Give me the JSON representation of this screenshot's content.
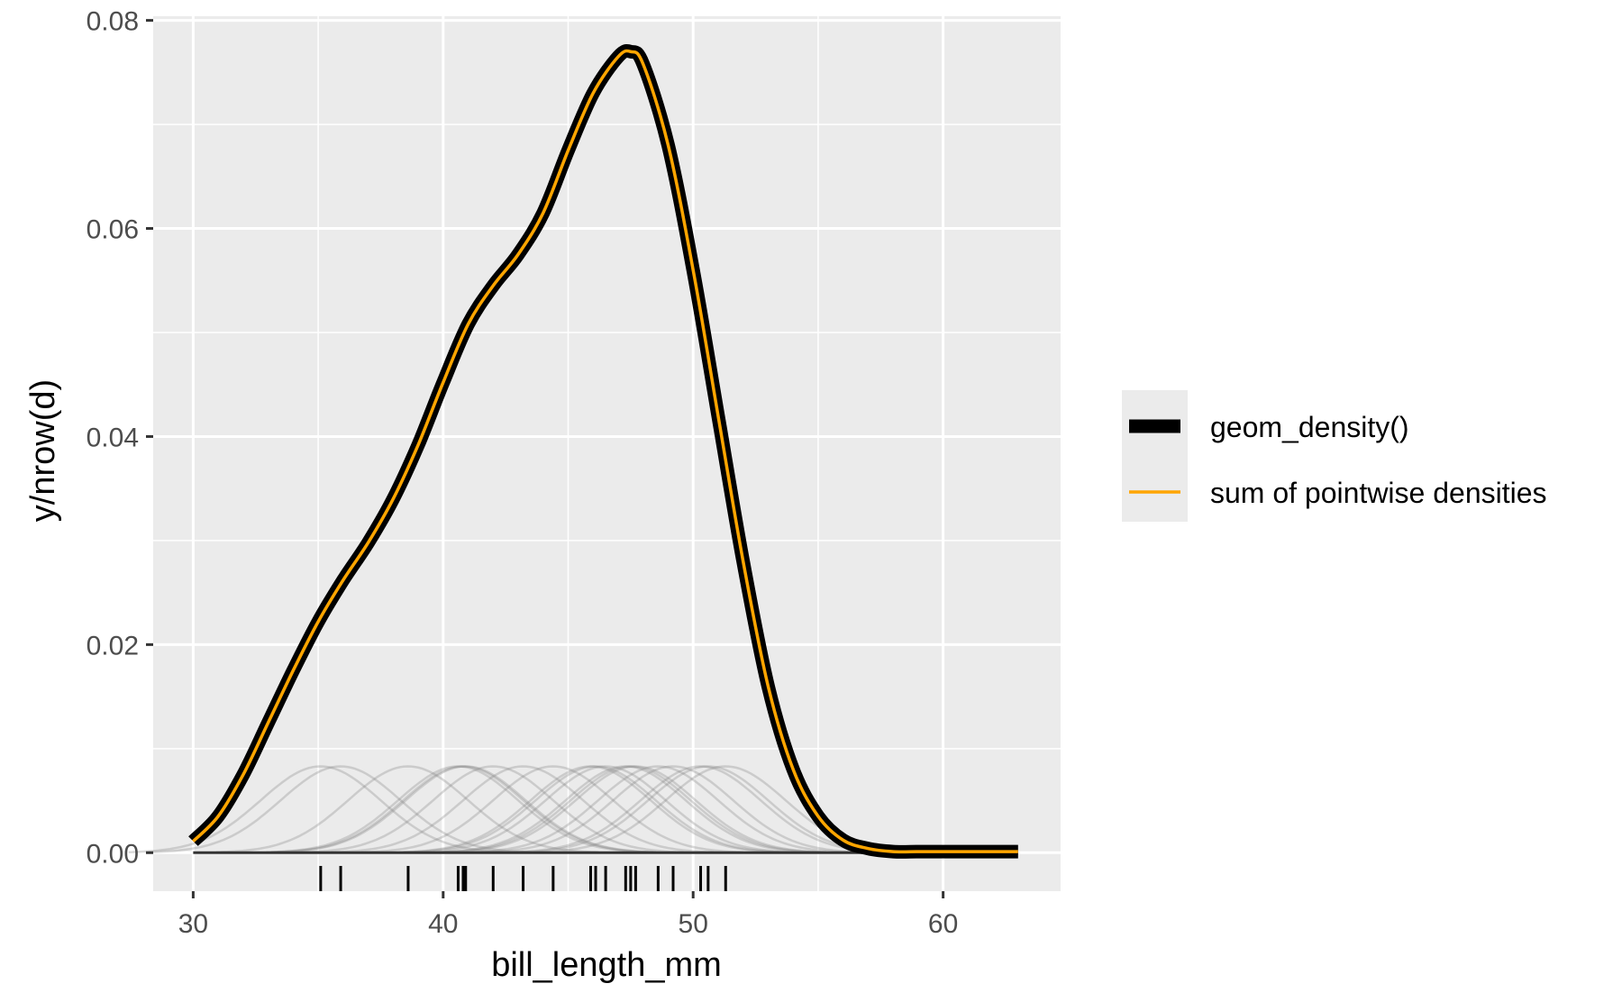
{
  "chart_data": {
    "type": "line",
    "title": "",
    "xlabel": "bill_length_mm",
    "ylabel": "y/nrow(d)",
    "xlim": [
      28.4,
      64.7
    ],
    "ylim": [
      -0.0037,
      0.0804
    ],
    "x_ticks": [
      30,
      40,
      50,
      60
    ],
    "y_ticks": [
      0.0,
      0.02,
      0.04,
      0.06,
      0.08
    ],
    "x_tick_labels": [
      "30",
      "40",
      "50",
      "60"
    ],
    "y_tick_labels": [
      "0.00",
      "0.02",
      "0.04",
      "0.06",
      "0.08"
    ],
    "grid": true,
    "legend": {
      "position": "right",
      "entries": [
        {
          "label": "geom_density()",
          "color": "#000000"
        },
        {
          "label": "sum of pointwise densities",
          "color": "#FFA500"
        }
      ]
    },
    "colors": {
      "panel": "#EBEBEB",
      "grid": "#FFFFFF",
      "density": "#000000",
      "sum": "#FFA500",
      "pointwise": "#808080"
    },
    "rug": [
      35.1,
      35.9,
      38.6,
      40.6,
      40.8,
      40.9,
      42.0,
      43.2,
      44.4,
      45.9,
      46.1,
      46.5,
      47.3,
      47.5,
      47.7,
      48.6,
      49.2,
      50.3,
      50.6,
      51.3
    ],
    "bandwidth": 2.4,
    "pointwise_peak": 0.0083,
    "series": [
      {
        "name": "geom_density()",
        "x": [
          30,
          31,
          32,
          33,
          34,
          35,
          36,
          37,
          38,
          39,
          40,
          41,
          42,
          43,
          44,
          45,
          46,
          47,
          47.5,
          48,
          49,
          50,
          51,
          52,
          53,
          54,
          55,
          56,
          57,
          58,
          59,
          60,
          61,
          62,
          63
        ],
        "values": [
          0.0011,
          0.0035,
          0.0075,
          0.0125,
          0.0175,
          0.0222,
          0.0262,
          0.0298,
          0.034,
          0.0392,
          0.0452,
          0.0508,
          0.0545,
          0.0575,
          0.0615,
          0.0675,
          0.073,
          0.0765,
          0.077,
          0.0758,
          0.068,
          0.056,
          0.042,
          0.028,
          0.016,
          0.008,
          0.0035,
          0.0012,
          0.0004,
          0.0001,
          0.0001,
          0.0001,
          0.0001,
          0.0001,
          0.0001
        ]
      },
      {
        "name": "sum of pointwise densities",
        "x": [
          30,
          31,
          32,
          33,
          34,
          35,
          36,
          37,
          38,
          39,
          40,
          41,
          42,
          43,
          44,
          45,
          46,
          47,
          47.5,
          48,
          49,
          50,
          51,
          52,
          53,
          54,
          55,
          56,
          57,
          58,
          59,
          60,
          61,
          62,
          63
        ],
        "values": [
          0.0011,
          0.0035,
          0.0075,
          0.0125,
          0.0175,
          0.0222,
          0.0262,
          0.0298,
          0.034,
          0.0392,
          0.0452,
          0.0508,
          0.0545,
          0.0575,
          0.0615,
          0.0675,
          0.073,
          0.0765,
          0.077,
          0.0758,
          0.068,
          0.056,
          0.042,
          0.028,
          0.016,
          0.008,
          0.0035,
          0.0012,
          0.0004,
          0.0001,
          0.0001,
          0.0001,
          0.0001,
          0.0001,
          0.0001
        ]
      }
    ]
  }
}
